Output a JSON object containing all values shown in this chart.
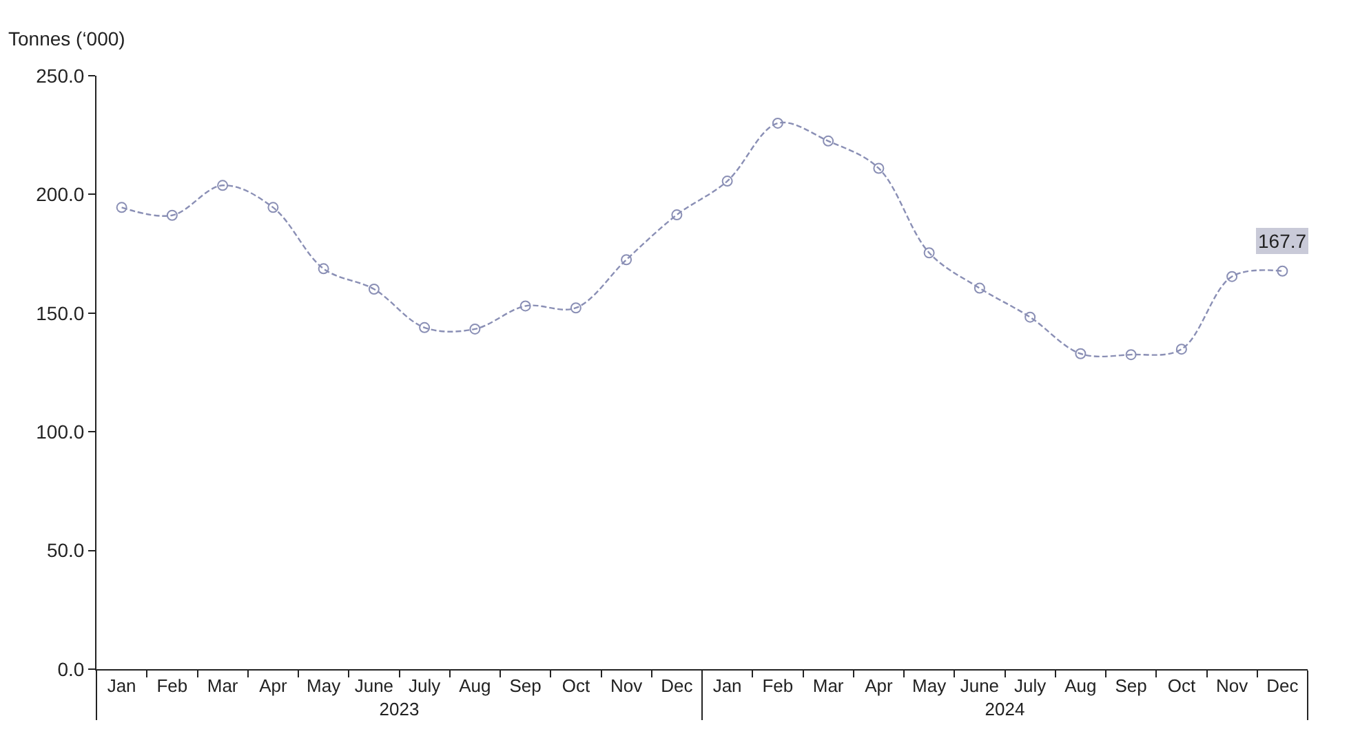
{
  "chart_data": {
    "type": "line",
    "ylabel": "Tonnes (‘000)",
    "categories": [
      "Jan",
      "Feb",
      "Mar",
      "Apr",
      "May",
      "June",
      "July",
      "Aug",
      "Sep",
      "Oct",
      "Nov",
      "Dec",
      "Jan",
      "Feb",
      "Mar",
      "Apr",
      "May",
      "June",
      "July",
      "Aug",
      "Sep",
      "Oct",
      "Nov",
      "Dec"
    ],
    "series": [
      {
        "color": "#8a8fb5",
        "values": [
          194.5,
          191.2,
          203.8,
          194.5,
          168.7,
          160.1,
          143.9,
          143.3,
          153.0,
          152.2,
          172.5,
          191.4,
          205.6,
          230.0,
          222.5,
          211.0,
          175.4,
          160.5,
          148.3,
          132.9,
          132.5,
          134.8,
          165.4,
          167.7
        ],
        "value_labels": [
          null,
          null,
          null,
          null,
          null,
          null,
          null,
          null,
          null,
          null,
          null,
          null,
          null,
          null,
          null,
          null,
          null,
          null,
          null,
          null,
          null,
          null,
          null,
          "167.7"
        ]
      }
    ],
    "annotations": [
      "2023",
      "2024"
    ],
    "ylim": [
      0,
      250
    ],
    "yticks": [
      {
        "value": 0,
        "label": "0.0"
      },
      {
        "value": 50,
        "label": "50.0"
      },
      {
        "value": 100,
        "label": "100.0"
      },
      {
        "value": 150,
        "label": "150.0"
      },
      {
        "value": 200,
        "label": "200.0"
      },
      {
        "value": 250,
        "label": "250.0"
      }
    ],
    "marker": "circle",
    "line_style": "dashed"
  }
}
